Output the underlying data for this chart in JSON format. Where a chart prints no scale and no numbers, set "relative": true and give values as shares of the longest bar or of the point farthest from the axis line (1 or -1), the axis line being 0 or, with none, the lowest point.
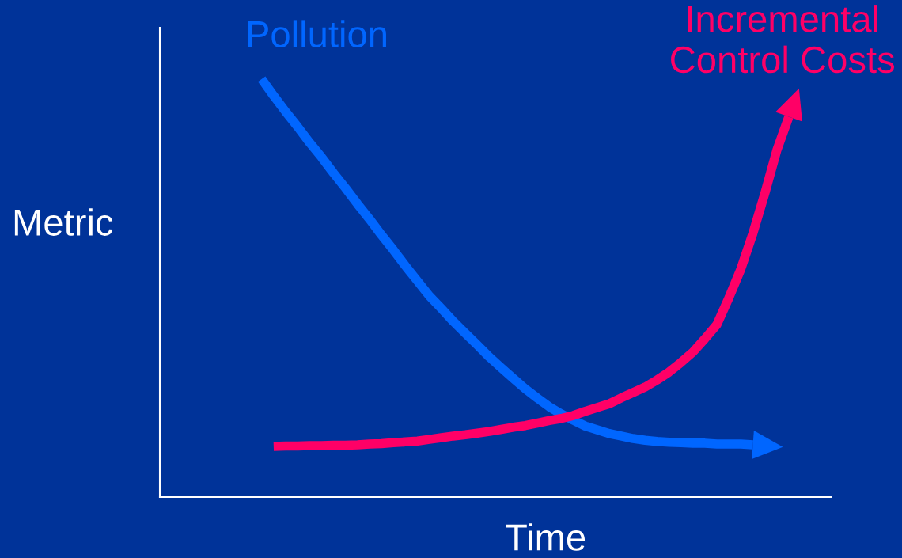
{
  "chart_data": {
    "type": "line",
    "relative": true,
    "xlabel": "Time",
    "ylabel": "Metric",
    "grid": false,
    "legend": false,
    "marker": "none",
    "line_style": "solid",
    "categories": [
      null,
      null,
      null,
      null,
      null,
      null,
      null,
      null,
      null,
      null,
      null,
      null,
      null,
      null,
      null,
      null,
      null,
      null,
      null,
      null,
      null,
      null,
      null,
      null,
      null,
      null,
      null,
      null,
      null,
      null,
      null,
      null,
      null,
      null,
      null,
      null,
      null,
      null,
      null,
      null,
      null,
      null,
      null,
      null,
      null,
      null,
      null,
      null,
      null,
      null,
      null,
      null,
      null,
      null,
      null,
      null
    ],
    "series": [
      {
        "name": "Pollution",
        "color": "#0066ff",
        "values": [
          null,
          null,
          null,
          null,
          null,
          null,
          null,
          null,
          1.0,
          0.96,
          0.922,
          0.886,
          0.848,
          0.813,
          0.775,
          0.739,
          0.701,
          0.665,
          0.627,
          0.591,
          0.553,
          0.517,
          0.481,
          0.451,
          0.42,
          0.392,
          0.364,
          0.335,
          0.309,
          0.284,
          0.259,
          0.237,
          0.216,
          0.199,
          0.184,
          0.17,
          0.161,
          0.152,
          0.146,
          0.14,
          0.136,
          0.133,
          0.131,
          0.13,
          0.129,
          0.129,
          0.127,
          0.127,
          0.127,
          0.125,
          null,
          null,
          null,
          null,
          null,
          null
        ]
      },
      {
        "name": "Incremental\nControl Costs",
        "color": "#ff0066",
        "values": [
          null,
          null,
          null,
          null,
          null,
          null,
          null,
          null,
          null,
          0.121,
          0.122,
          0.122,
          0.123,
          0.123,
          0.124,
          0.124,
          0.125,
          0.127,
          0.128,
          0.13,
          0.132,
          0.134,
          0.138,
          0.142,
          0.146,
          0.149,
          0.153,
          0.157,
          0.162,
          0.167,
          0.171,
          0.177,
          0.183,
          0.188,
          0.195,
          0.205,
          0.214,
          0.223,
          0.237,
          0.25,
          0.263,
          0.28,
          0.299,
          0.322,
          0.347,
          0.379,
          0.413,
          0.477,
          0.546,
          0.631,
          0.727,
          0.83,
          0.91,
          null,
          null,
          null
        ]
      }
    ]
  }
}
